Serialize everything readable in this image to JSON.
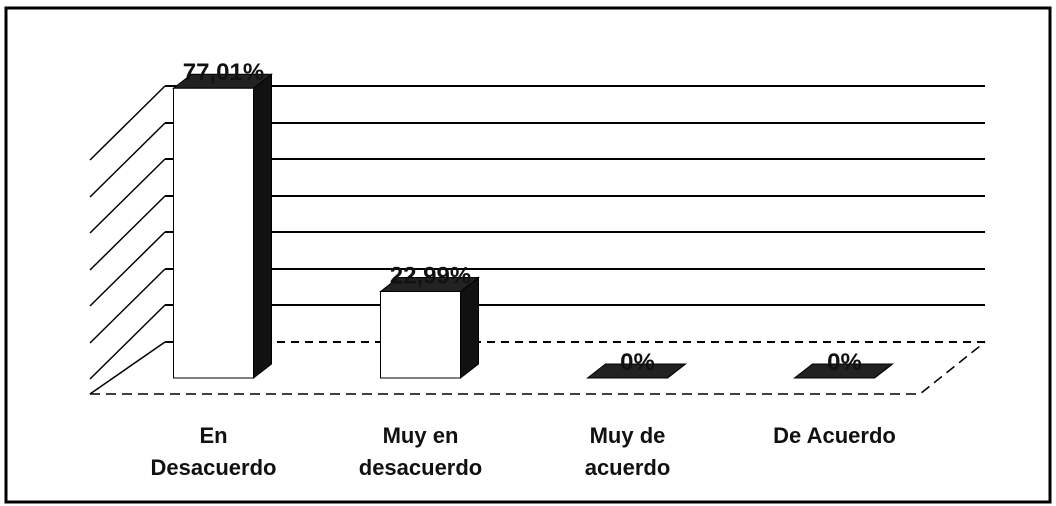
{
  "chart_data": {
    "type": "bar",
    "categories": [
      "En Desacuerdo",
      "Muy en desacuerdo",
      "Muy de acuerdo",
      "De Acuerdo"
    ],
    "values": [
      77.01,
      22.99,
      0,
      0
    ],
    "value_labels": [
      "77,01%",
      "22,99%",
      "0%",
      "0%"
    ],
    "color": "#ffffff",
    "ylim": [
      0,
      80
    ]
  }
}
